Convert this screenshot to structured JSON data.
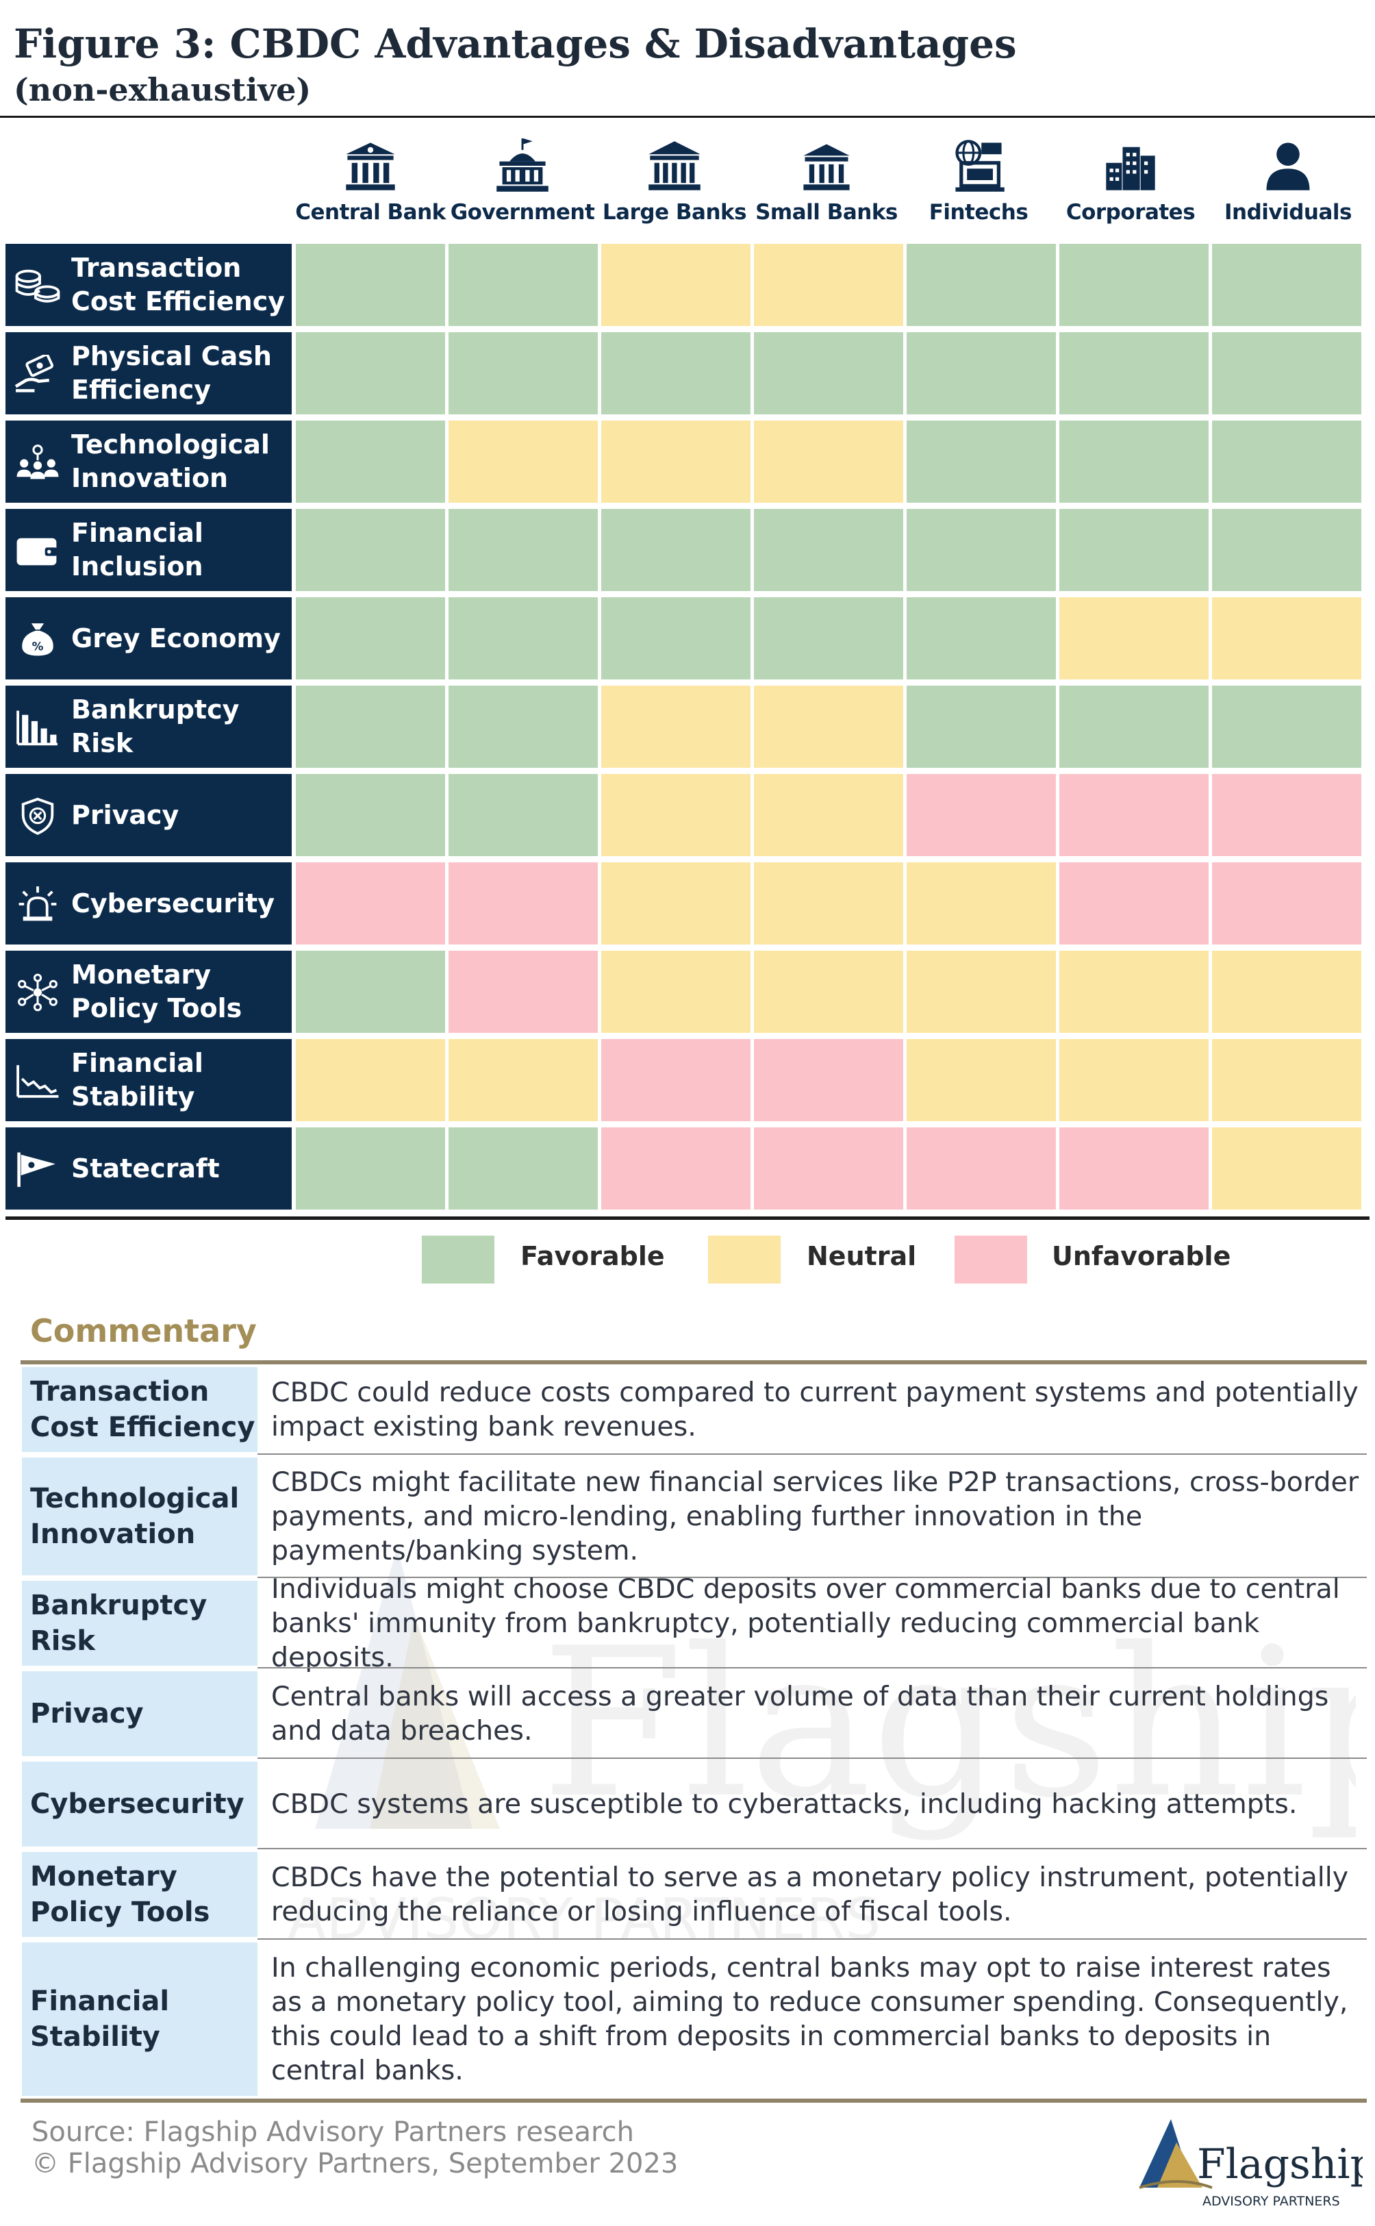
{
  "title": "Figure 3: CBDC Advantages & Disadvantages",
  "subtitle": "(non-exhaustive)",
  "columns": [
    {
      "label": "Central Bank",
      "icon": "central-bank-icon"
    },
    {
      "label": "Government",
      "icon": "government-icon"
    },
    {
      "label": "Large Banks",
      "icon": "large-banks-icon"
    },
    {
      "label": "Small Banks",
      "icon": "small-banks-icon"
    },
    {
      "label": "Fintechs",
      "icon": "fintechs-icon"
    },
    {
      "label": "Corporates",
      "icon": "corporates-icon"
    },
    {
      "label": "Individuals",
      "icon": "individuals-icon"
    }
  ],
  "rows": [
    {
      "label": "Transaction Cost Efficiency",
      "icon": "coins-icon",
      "ratings": [
        "favorable",
        "favorable",
        "neutral",
        "neutral",
        "favorable",
        "favorable",
        "favorable"
      ]
    },
    {
      "label": "Physical Cash Efficiency",
      "icon": "cash-hand-icon",
      "ratings": [
        "favorable",
        "favorable",
        "favorable",
        "favorable",
        "favorable",
        "favorable",
        "favorable"
      ]
    },
    {
      "label": "Technological Innovation",
      "icon": "people-network-icon",
      "ratings": [
        "favorable",
        "neutral",
        "neutral",
        "neutral",
        "favorable",
        "favorable",
        "favorable"
      ]
    },
    {
      "label": "Financial Inclusion",
      "icon": "wallet-icon",
      "ratings": [
        "favorable",
        "favorable",
        "favorable",
        "favorable",
        "favorable",
        "favorable",
        "favorable"
      ]
    },
    {
      "label": "Grey Economy",
      "icon": "money-bag-icon",
      "ratings": [
        "favorable",
        "favorable",
        "favorable",
        "favorable",
        "favorable",
        "neutral",
        "neutral"
      ]
    },
    {
      "label": "Bankruptcy Risk",
      "icon": "declining-bars-icon",
      "ratings": [
        "favorable",
        "favorable",
        "neutral",
        "neutral",
        "favorable",
        "favorable",
        "favorable"
      ]
    },
    {
      "label": "Privacy",
      "icon": "shield-icon",
      "ratings": [
        "favorable",
        "favorable",
        "neutral",
        "neutral",
        "unfavorable",
        "unfavorable",
        "unfavorable"
      ]
    },
    {
      "label": "Cybersecurity",
      "icon": "alarm-icon",
      "ratings": [
        "unfavorable",
        "unfavorable",
        "neutral",
        "neutral",
        "neutral",
        "unfavorable",
        "unfavorable"
      ]
    },
    {
      "label": "Monetary Policy Tools",
      "icon": "network-icon",
      "ratings": [
        "favorable",
        "unfavorable",
        "neutral",
        "neutral",
        "neutral",
        "neutral",
        "neutral"
      ]
    },
    {
      "label": "Financial Stability",
      "icon": "line-chart-icon",
      "ratings": [
        "neutral",
        "neutral",
        "unfavorable",
        "unfavorable",
        "neutral",
        "neutral",
        "neutral"
      ]
    },
    {
      "label": "Statecraft",
      "icon": "flag-icon",
      "ratings": [
        "favorable",
        "favorable",
        "unfavorable",
        "unfavorable",
        "unfavorable",
        "unfavorable",
        "neutral"
      ]
    }
  ],
  "legend": [
    {
      "key": "favorable",
      "label": "Favorable",
      "color": "#b8d6b6"
    },
    {
      "key": "neutral",
      "label": "Neutral",
      "color": "#fce6a3"
    },
    {
      "key": "unfavorable",
      "label": "Unfavorable",
      "color": "#fbc3c9"
    }
  ],
  "commentary": {
    "title": "Commentary",
    "items": [
      {
        "label": "Transaction Cost Efficiency",
        "text": "CBDC could reduce costs compared to current payment systems and potentially impact existing bank revenues."
      },
      {
        "label": "Technological Innovation",
        "text": "CBDCs might facilitate new financial services like P2P transactions, cross-border payments, and micro-lending, enabling further innovation in the payments/banking system."
      },
      {
        "label": "Bankruptcy Risk",
        "text": "Individuals might choose CBDC deposits over commercial banks due to central banks' immunity from bankruptcy, potentially reducing commercial bank deposits."
      },
      {
        "label": "Privacy",
        "text": "Central banks will access a greater volume of data than their current holdings and data breaches."
      },
      {
        "label": "Cybersecurity",
        "text": "CBDC systems are susceptible to cyberattacks, including hacking attempts."
      },
      {
        "label": "Monetary Policy Tools",
        "text": "CBDCs have the potential to serve as a monetary policy instrument, potentially reducing the reliance or losing influence of fiscal tools."
      },
      {
        "label": "Financial Stability",
        "text": "In challenging economic periods, central banks may opt to raise interest rates as a monetary policy tool, aiming to reduce consumer spending. Consequently, this could lead to a shift from deposits in commercial banks to deposits in central banks."
      }
    ]
  },
  "footer": {
    "source": "Source: Flagship Advisory Partners research",
    "copyright": "© Flagship Advisory Partners, September 2023"
  },
  "logo": {
    "name": "Flagship",
    "tagline": "ADVISORY PARTNERS"
  },
  "watermark": {
    "name": "Flagship",
    "tagline": "ADVISORY PARTNERS"
  },
  "colors": {
    "navy": "#0c2b4b",
    "commentary_gold": "#a48e58",
    "commentary_header_bg": "#d6eaf8"
  }
}
